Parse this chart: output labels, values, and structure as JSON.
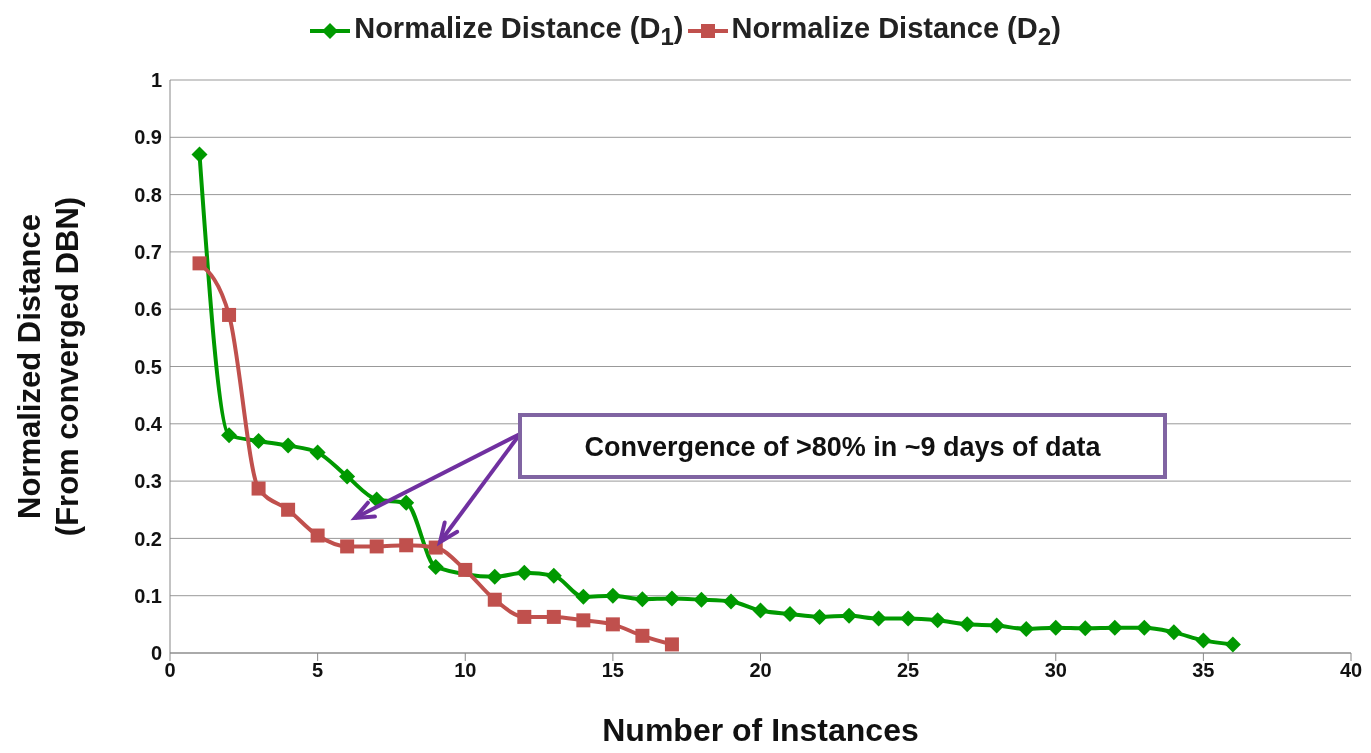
{
  "chart_data": {
    "type": "line",
    "xlabel": "Number of Instances",
    "ylabel": "Normalized Distance\n(From converged DBN)",
    "xlim": [
      0,
      40
    ],
    "xticks": [
      0,
      5,
      10,
      15,
      20,
      25,
      30,
      35,
      40
    ],
    "ylim": [
      0,
      1
    ],
    "yticks": [
      0,
      0.1,
      0.2,
      0.3,
      0.4,
      0.5,
      0.6,
      0.7,
      0.8,
      0.9,
      1
    ],
    "grid": "y",
    "legend": "top",
    "series": [
      {
        "name": "Normalize Distance (D$_{1}$)",
        "color": "#009900",
        "marker": "diamond",
        "x": [
          1,
          2,
          3,
          4,
          5,
          6,
          7,
          8,
          9,
          10,
          11,
          12,
          13,
          14,
          15,
          16,
          17,
          18,
          19,
          20,
          21,
          22,
          23,
          24,
          25,
          26,
          27,
          28,
          29,
          30,
          31,
          32,
          33,
          34,
          35,
          36
        ],
        "values": [
          0.87,
          0.38,
          0.37,
          0.362,
          0.35,
          0.308,
          0.268,
          0.262,
          0.15,
          null,
          0.133,
          0.14,
          0.135,
          0.098,
          0.1,
          0.094,
          0.095,
          0.093,
          0.09,
          0.074,
          0.068,
          0.063,
          0.065,
          0.06,
          0.06,
          0.057,
          0.05,
          0.048,
          0.042,
          0.044,
          0.043,
          0.044,
          0.044,
          0.036,
          0.022,
          0.015
        ]
      },
      {
        "name": "Normalize Distance (D$_{2}$)",
        "color": "#c0504d",
        "marker": "square",
        "x": [
          1,
          2,
          3,
          4,
          5,
          6,
          7,
          8,
          9,
          10,
          11,
          12,
          13,
          14,
          15,
          16,
          17
        ],
        "values": [
          0.68,
          0.59,
          0.287,
          0.25,
          0.205,
          0.186,
          0.186,
          0.188,
          0.184,
          0.145,
          0.093,
          0.063,
          0.063,
          0.057,
          0.05,
          0.03,
          0.015
        ]
      }
    ],
    "annotations": [
      "Convergence of >80% in ~9 days of data"
    ]
  }
}
